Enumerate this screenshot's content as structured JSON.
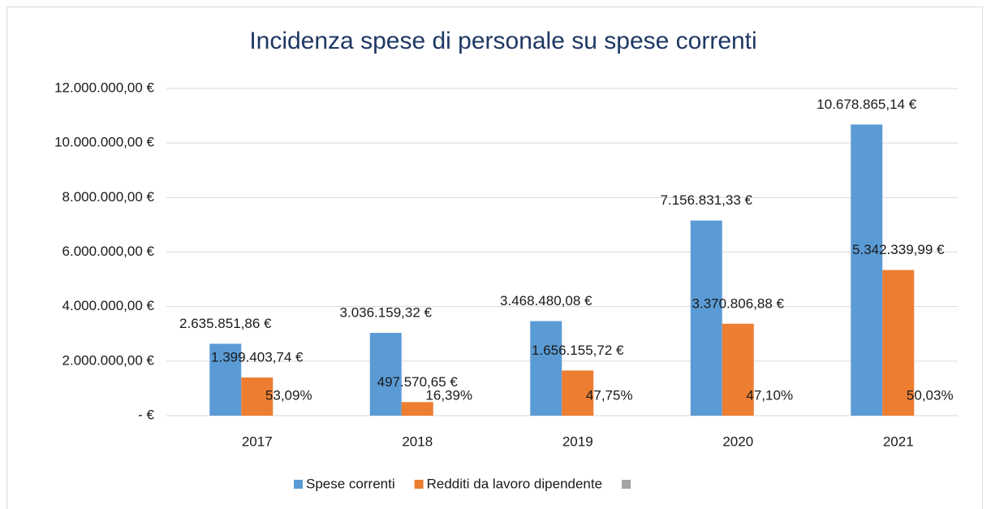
{
  "chart_data": {
    "type": "bar",
    "title": "Incidenza spese di personale su spese correnti",
    "categories": [
      "2017",
      "2018",
      "2019",
      "2020",
      "2021"
    ],
    "series": [
      {
        "name": "Spese correnti",
        "color": "#5b9bd5",
        "values": [
          2635851.86,
          3036159.32,
          3468480.08,
          7156831.33,
          10678865.14
        ],
        "value_labels": [
          "2.635.851,86 €",
          "3.036.159,32 €",
          "3.468.480,08 €",
          "7.156.831,33 €",
          "10.678.865,14 €"
        ]
      },
      {
        "name": "Redditi da lavoro dipendente",
        "color": "#ed7d31",
        "values": [
          1399403.74,
          497570.65,
          1656155.72,
          3370806.88,
          5342339.99
        ],
        "value_labels": [
          "1.399.403,74 €",
          "497.570,65 €",
          "1.656.155,72 €",
          "3.370.806,88 €",
          "5.342.339,99 €"
        ]
      },
      {
        "color": "#a5a5a5",
        "values": [
          0.5309,
          0.1639,
          0.4775,
          0.471,
          0.5003
        ],
        "value_labels": [
          "53,09%",
          "16,39%",
          "47,75%",
          "47,10%",
          "50,03%"
        ]
      }
    ],
    "ylim": [
      0,
      12000000
    ],
    "yticks": [
      {
        "value": 0,
        "label": "-   €"
      },
      {
        "value": 2000000,
        "label": "2.000.000,00 €"
      },
      {
        "value": 4000000,
        "label": "4.000.000,00 €"
      },
      {
        "value": 6000000,
        "label": "6.000.000,00 €"
      },
      {
        "value": 8000000,
        "label": "8.000.000,00 €"
      },
      {
        "value": 10000000,
        "label": "10.000.000,00 €"
      },
      {
        "value": 12000000,
        "label": "12.000.000,00 €"
      }
    ],
    "grid": true
  }
}
